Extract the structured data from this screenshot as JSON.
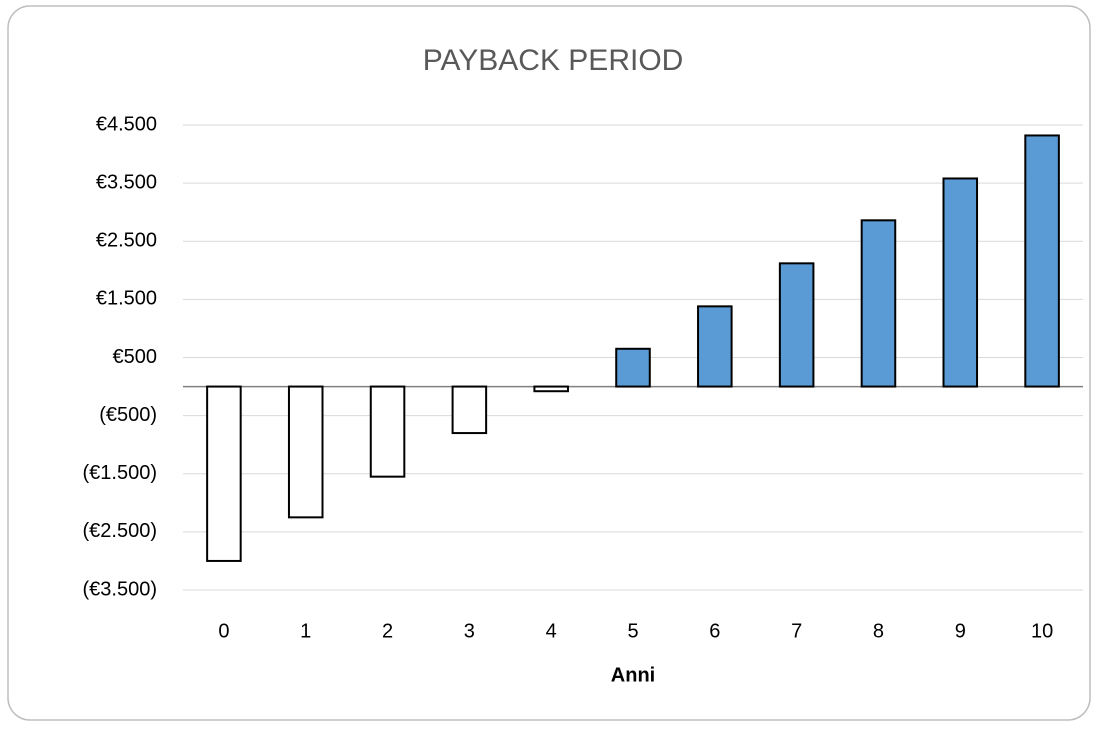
{
  "chart_data": {
    "type": "bar",
    "title": "PAYBACK PERIOD",
    "x_label": "Anni",
    "categories": [
      "0",
      "1",
      "2",
      "3",
      "4",
      "5",
      "6",
      "7",
      "8",
      "9",
      "10"
    ],
    "values": [
      -3000,
      -2250,
      -1550,
      -800,
      -80,
      650,
      1380,
      2120,
      2860,
      3580,
      4320
    ],
    "positive_color": "#5b9bd5",
    "negative_color": "#ffffff",
    "negative_label_color": "#ff0000",
    "ylim": [
      -3500,
      4500
    ],
    "yticks": [
      {
        "value": -3500,
        "label": "(€3.500)"
      },
      {
        "value": -2500,
        "label": "(€2.500)"
      },
      {
        "value": -1500,
        "label": "(€1.500)"
      },
      {
        "value": -500,
        "label": "(€500)"
      },
      {
        "value": 500,
        "label": "€500"
      },
      {
        "value": 1500,
        "label": "€1.500"
      },
      {
        "value": 2500,
        "label": "€2.500"
      },
      {
        "value": 3500,
        "label": "€3.500"
      },
      {
        "value": 4500,
        "label": "€4.500"
      }
    ],
    "grid": true
  }
}
